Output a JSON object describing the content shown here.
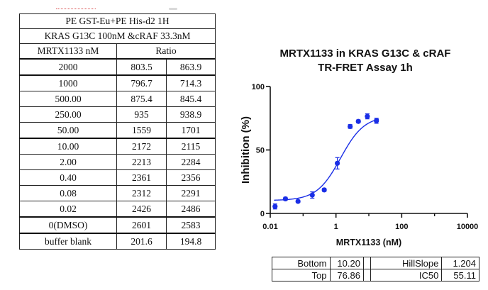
{
  "table": {
    "title_line1": "PE GST-Eu+PE His-d2 1H",
    "title_line2": "KRAS G13C 100nM &cRAF 33.3nM",
    "col_header": "MRTX1133 nM",
    "ratio_header": "Ratio",
    "rows": [
      {
        "conc": "2000",
        "r1": "803.5",
        "r2": "863.9"
      },
      {
        "conc": "1000",
        "r1": "796.7",
        "r2": "714.3"
      },
      {
        "conc": "500.00",
        "r1": "875.4",
        "r2": "845.4"
      },
      {
        "conc": "250.00",
        "r1": "935",
        "r2": "938.9"
      },
      {
        "conc": "50.00",
        "r1": "1559",
        "r2": "1701"
      },
      {
        "conc": "10.00",
        "r1": "2172",
        "r2": "2115"
      },
      {
        "conc": "2.00",
        "r1": "2213",
        "r2": "2284"
      },
      {
        "conc": "0.40",
        "r1": "2361",
        "r2": "2356"
      },
      {
        "conc": "0.08",
        "r1": "2312",
        "r2": "2291"
      },
      {
        "conc": "0.02",
        "r1": "2426",
        "r2": "2486"
      },
      {
        "conc": "0(DMSO)",
        "r1": "2601",
        "r2": "2583"
      },
      {
        "conc": "buffer blank",
        "r1": "201.6",
        "r2": "194.8"
      }
    ]
  },
  "chart_data": {
    "type": "scatter",
    "title_line1": "MRTX1133 in KRAS G13C & cRAF",
    "title_line2": "TR-FRET Assay 1h",
    "xlabel": "MRTX1133 (nM)",
    "ylabel": "Inhibition (%)",
    "xscale": "log",
    "xlim": [
      0.01,
      10000
    ],
    "ylim": [
      0,
      100
    ],
    "xticks": [
      0.01,
      1,
      100,
      10000
    ],
    "xtick_labels": [
      "0.01",
      "1",
      "100",
      "10000"
    ],
    "yticks": [
      0,
      50,
      100
    ],
    "ytick_labels": [
      "0",
      "50",
      "100"
    ],
    "color": "#1a2ee6",
    "points": [
      {
        "x": 0.014,
        "y": 5.5,
        "err": 2.0
      },
      {
        "x": 0.029,
        "y": 11.5,
        "err": 1.2
      },
      {
        "x": 0.07,
        "y": 9.5,
        "err": 1.0
      },
      {
        "x": 0.19,
        "y": 14.5,
        "err": 2.5
      },
      {
        "x": 0.44,
        "y": 18.5,
        "err": 1.2
      },
      {
        "x": 1.1,
        "y": 39.5,
        "err": 4.5
      },
      {
        "x": 2.7,
        "y": 68.5,
        "err": 1.5
      },
      {
        "x": 4.8,
        "y": 72.5,
        "err": 1.2
      },
      {
        "x": 9.0,
        "y": 76.5,
        "err": 2.0
      },
      {
        "x": 17.0,
        "y": 73.0,
        "err": 2.0
      }
    ],
    "fit": {
      "bottom": 10.2,
      "top": 76.86,
      "hillslope": 1.204,
      "ic50": 55.11
    }
  },
  "params": {
    "bottom_label": "Bottom",
    "bottom_value": "10.20",
    "top_label": "Top",
    "top_value": "76.86",
    "hill_label": "HillSlope",
    "hill_value": "1.204",
    "ic50_label": "IC50",
    "ic50_value": "55.11"
  }
}
